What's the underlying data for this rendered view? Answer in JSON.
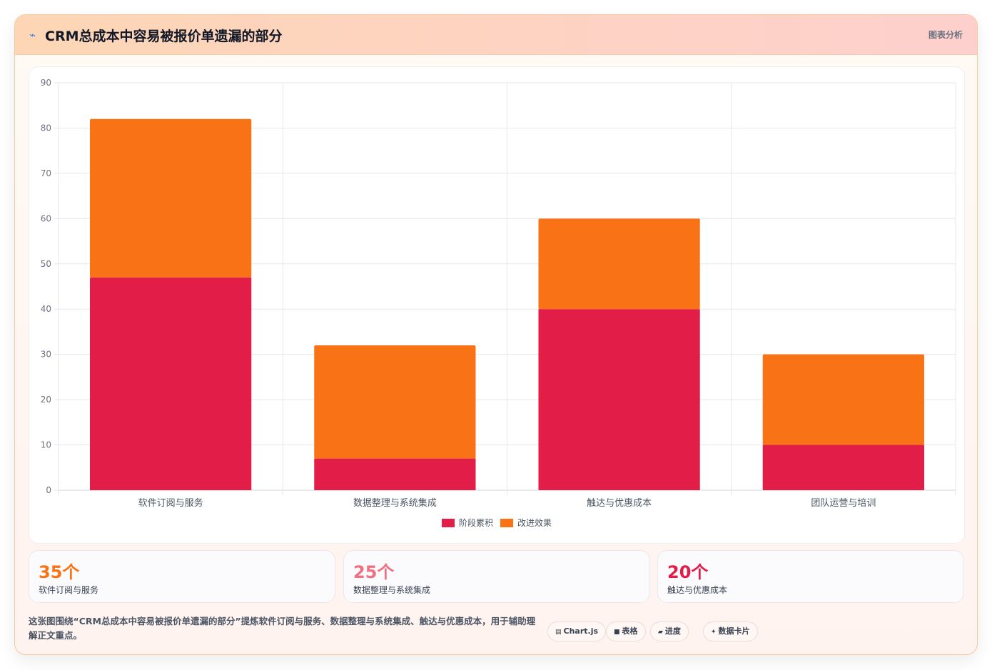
{
  "header": {
    "icon": "sparkle-icon",
    "title": "CRM总成本中容易被报价单遗漏的部分",
    "tag": "图表分析"
  },
  "chart_data": {
    "type": "bar",
    "stacked": true,
    "categories": [
      "软件订阅与服务",
      "数据整理与系统集成",
      "触达与优惠成本",
      "团队运营与培训"
    ],
    "series": [
      {
        "name": "阶段累积",
        "color": "#e11d48",
        "values": [
          47,
          7,
          40,
          10
        ]
      },
      {
        "name": "改进效果",
        "color": "#f97316",
        "values": [
          35,
          25,
          20,
          20
        ]
      }
    ],
    "ylim": [
      0,
      90
    ],
    "yticks": [
      0,
      10,
      20,
      30,
      40,
      50,
      60,
      70,
      80,
      90
    ],
    "grid": true,
    "legend": "bottom"
  },
  "stats": [
    {
      "value": "35个",
      "label": "软件订阅与服务",
      "color": "#f97316"
    },
    {
      "value": "25个",
      "label": "数据整理与系统集成",
      "color": "#f0707f"
    },
    {
      "value": "20个",
      "label": "触达与优惠成本",
      "color": "#e11d48"
    }
  ],
  "footer": {
    "description": "这张图围绕“CRM总成本中容易被报价单遗漏的部分”提炼软件订阅与服务、数据整理与系统集成、触达与优惠成本，用于辅助理解正文重点。",
    "chips": [
      {
        "icon": "chart-icon",
        "label": "Chart.js"
      },
      {
        "icon": "table-icon",
        "label": "表格"
      },
      {
        "icon": "progress-icon",
        "label": "进度"
      },
      {
        "icon": "sparkle-icon",
        "label": "数据卡片"
      }
    ]
  }
}
